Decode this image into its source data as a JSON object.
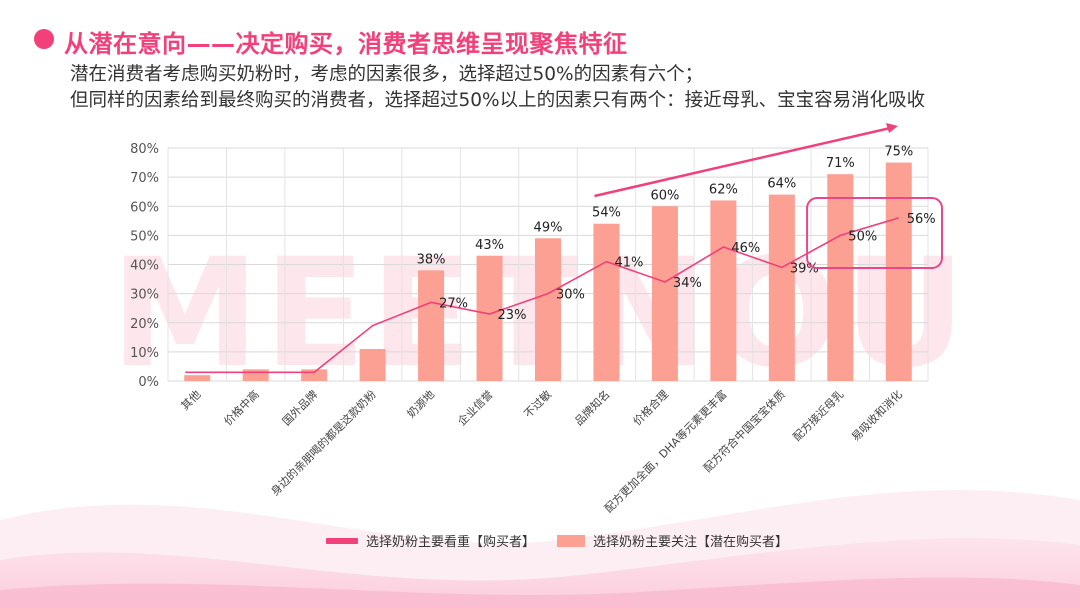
{
  "header": {
    "title": "从潜在意向——决定购买，消费者思维呈现聚焦特征",
    "subtitle_line1": "潜在消费者考虑购买奶粉时，考虑的因素很多，选择超过50%的因素有六个；",
    "subtitle_line2": "但同样的因素给到最终购买的消费者，选择超过50%以上的因素只有两个：接近母乳、宝宝容易消化吸收"
  },
  "colors": {
    "accent": "#f2407a",
    "bar": "#fca094",
    "highlight_box": "#e8488a",
    "trend_arrow": "#f2407a"
  },
  "watermark": "MEETNOU",
  "chart_data": {
    "type": "bar",
    "categories": [
      "其他",
      "价格中高",
      "国外品牌",
      "身边的亲朋喝的都是这款奶粉",
      "奶源地",
      "企业信誉",
      "不过敏",
      "品牌知名",
      "价格合理",
      "配方更加全面，DHA等元素更丰富",
      "配方符合中国宝宝体质",
      "配方接近母乳",
      "易吸收和消化"
    ],
    "series": [
      {
        "name": "选择奶粉主要关注【潜在购买者】",
        "type": "bar",
        "values": [
          2,
          4,
          4,
          11,
          38,
          43,
          49,
          54,
          60,
          62,
          64,
          71,
          75
        ],
        "labels": [
          "",
          "",
          "",
          "",
          "38%",
          "43%",
          "49%",
          "54%",
          "60%",
          "62%",
          "64%",
          "71%",
          "75%"
        ]
      },
      {
        "name": "选择奶粉主要看重【购买者】",
        "type": "line",
        "values": [
          3,
          3,
          3,
          19,
          27,
          23,
          30,
          41,
          34,
          46,
          39,
          50,
          56
        ],
        "labels": [
          "",
          "",
          "",
          "",
          "27%",
          "23%",
          "30%",
          "41%",
          "34%",
          "46%",
          "39%",
          "50%",
          "56%"
        ]
      }
    ],
    "y_ticks": [
      "0%",
      "10%",
      "20%",
      "30%",
      "40%",
      "50%",
      "60%",
      "70%",
      "80%"
    ],
    "ylim": [
      0,
      80
    ],
    "grid": true,
    "legend_position": "bottom"
  }
}
